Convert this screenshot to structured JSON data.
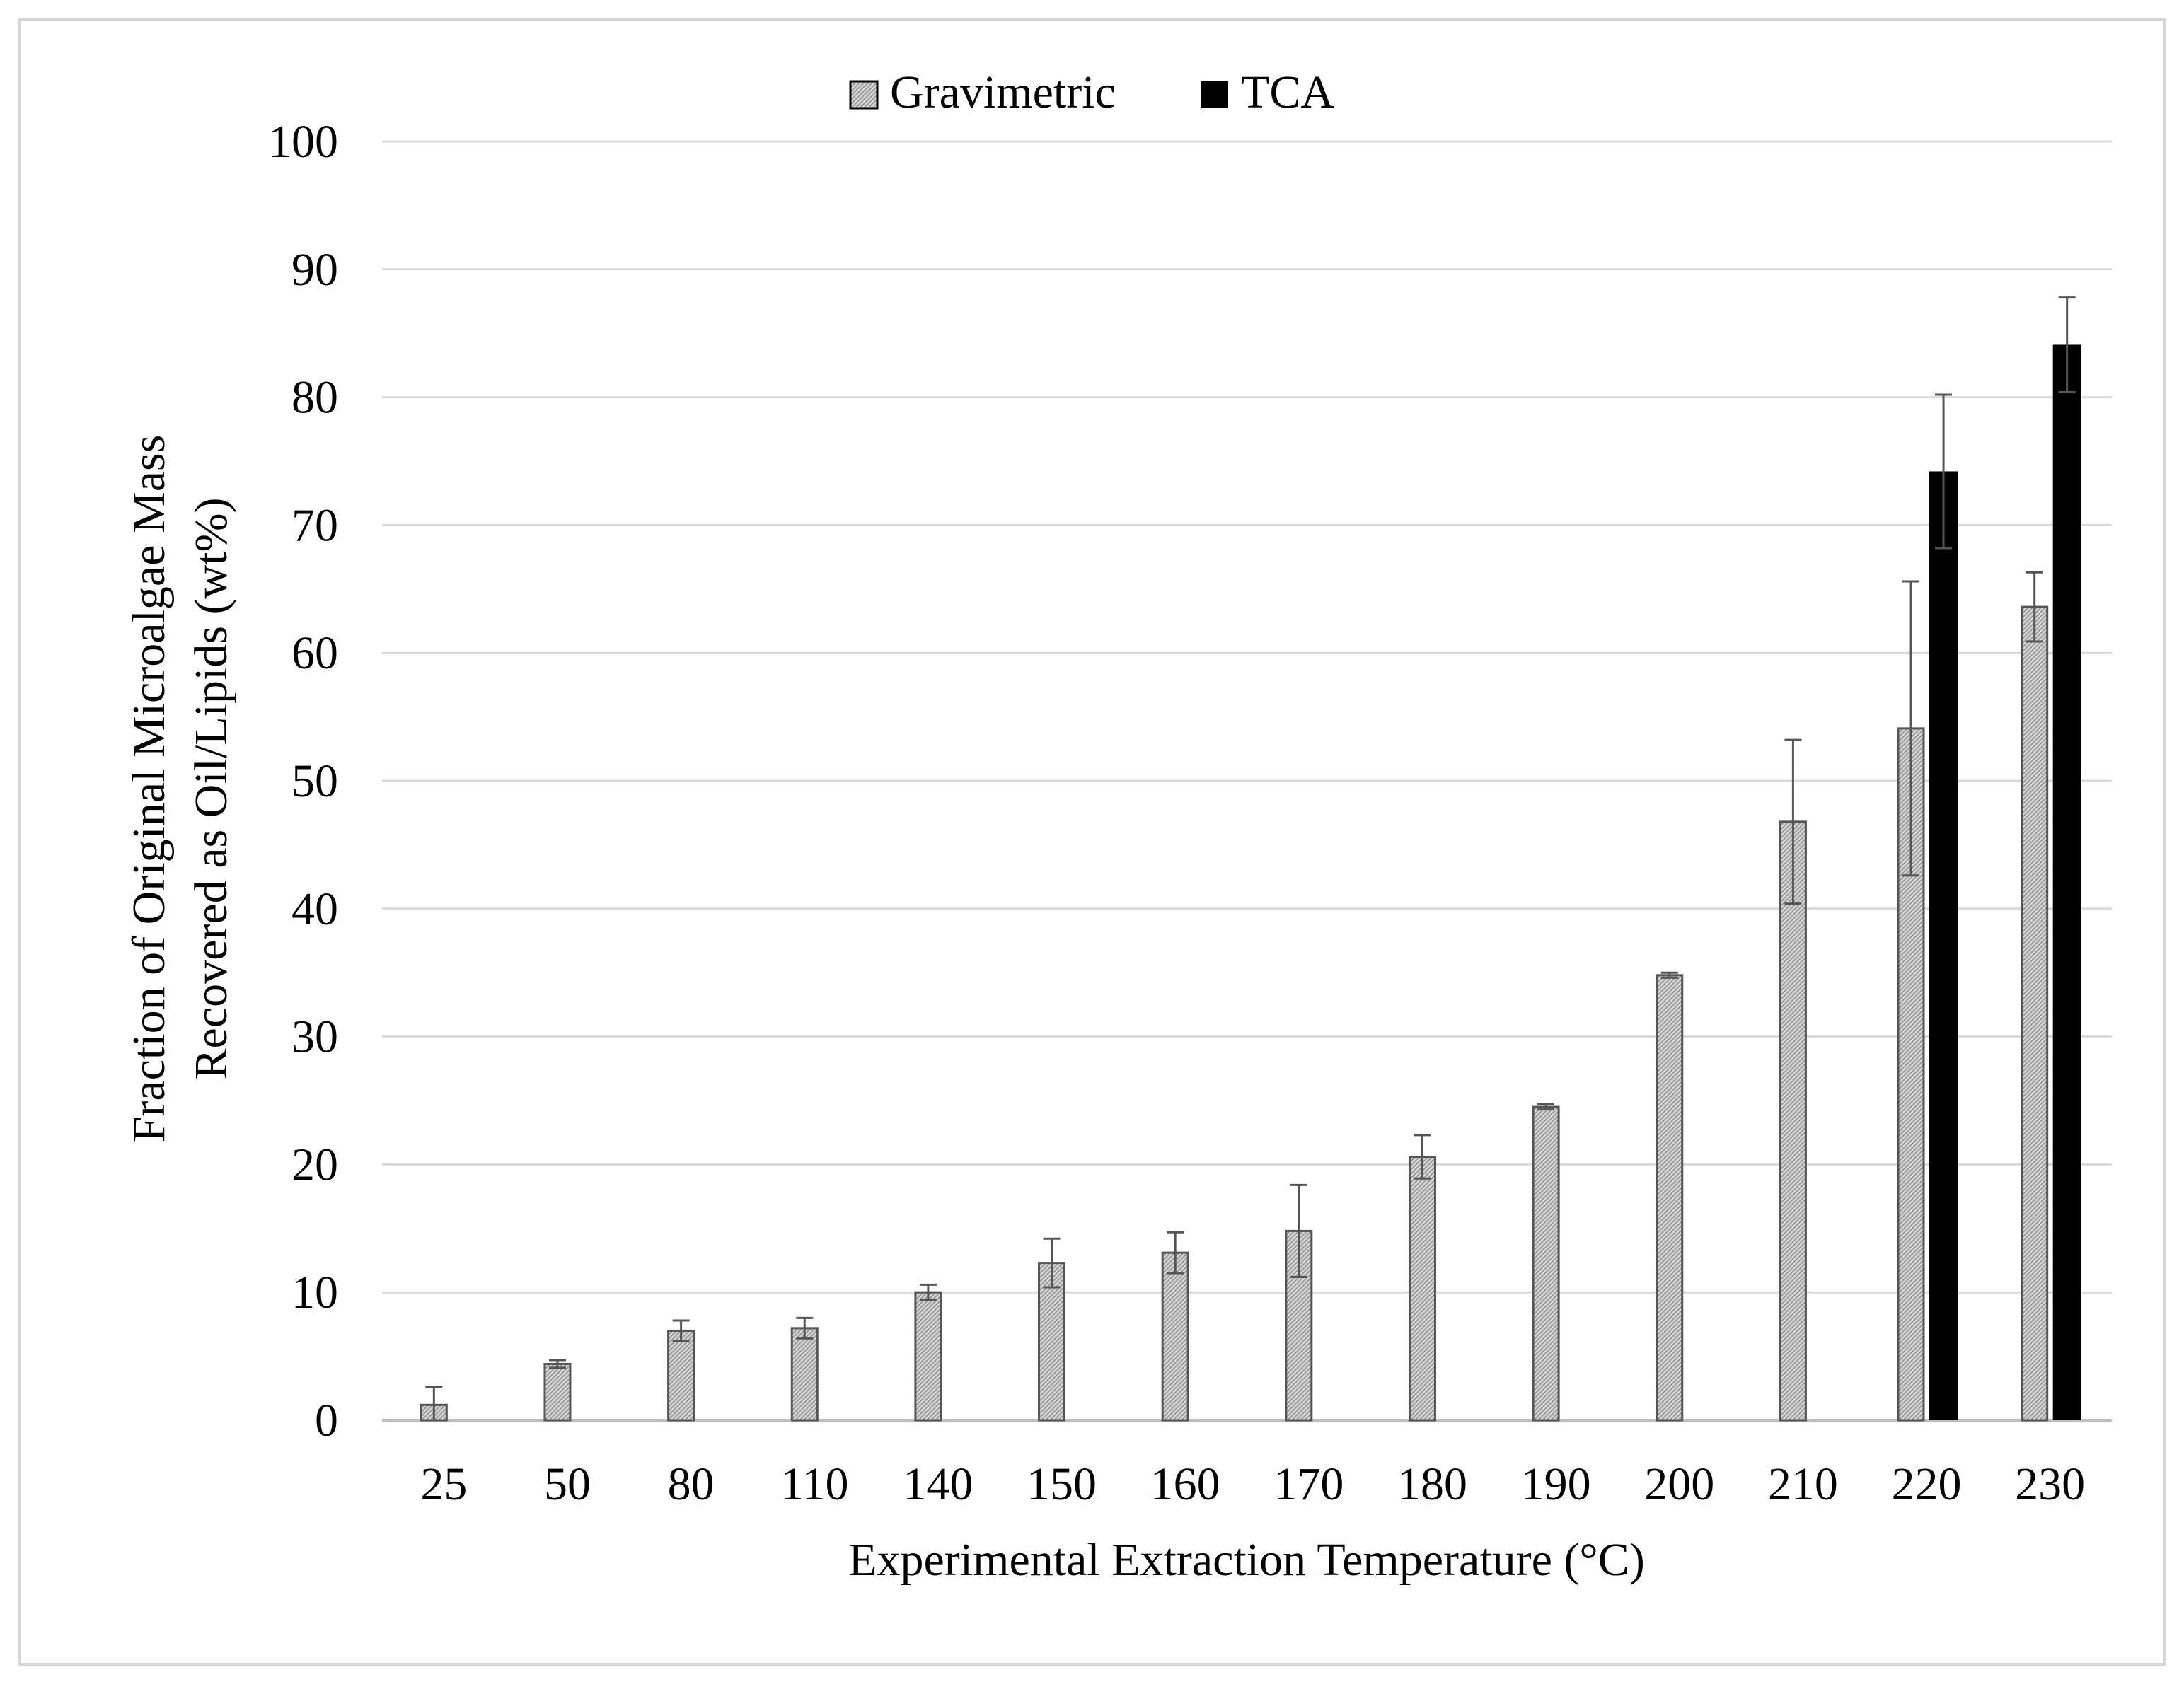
{
  "chart_data": {
    "type": "bar",
    "title": "",
    "xlabel": "Experimental Extraction Temperature (°C)",
    "ylabel_line1": "Fraction of Original Microalgae Mass",
    "ylabel_line2": "Recovered as Oil/Lipids (wt%)",
    "ylim": [
      0,
      100
    ],
    "yticks": [
      "0",
      "10",
      "20",
      "30",
      "40",
      "50",
      "60",
      "70",
      "80",
      "90",
      "100"
    ],
    "grid": true,
    "legend_position": "top-center",
    "categories": [
      "25",
      "50",
      "80",
      "110",
      "140",
      "150",
      "160",
      "170",
      "180",
      "190",
      "200",
      "210",
      "220",
      "230"
    ],
    "series": [
      {
        "name": "Gravimetric",
        "pattern": "hatched-gray",
        "values": [
          1.2,
          4.4,
          7.0,
          7.2,
          10.0,
          12.3,
          13.1,
          14.8,
          20.6,
          24.5,
          34.8,
          46.8,
          54.1,
          63.6
        ],
        "errors": [
          1.4,
          0.3,
          0.8,
          0.8,
          0.6,
          1.9,
          1.6,
          3.6,
          1.7,
          0.2,
          0.2,
          6.4,
          11.5,
          2.7
        ]
      },
      {
        "name": "TCA",
        "color": "#000000",
        "values": [
          null,
          null,
          null,
          null,
          null,
          null,
          null,
          null,
          null,
          null,
          null,
          null,
          74.2,
          84.1
        ],
        "errors": [
          null,
          null,
          null,
          null,
          null,
          null,
          null,
          null,
          null,
          null,
          null,
          null,
          6.0,
          3.7
        ]
      }
    ]
  }
}
